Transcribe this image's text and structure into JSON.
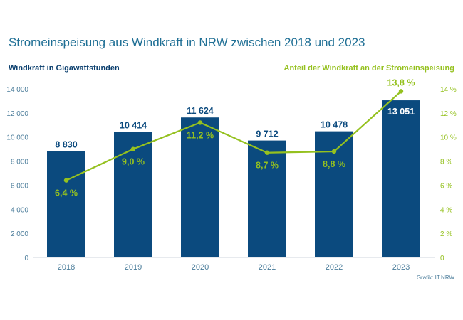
{
  "colors": {
    "bar": "#0b4a7e",
    "line": "#95c11f",
    "axis_text": "#4a7c9a",
    "title": "#1f6f95",
    "grid": "#cfd6dc"
  },
  "chart_data": {
    "type": "bar",
    "title": "Stromeinspeisung aus Windkraft in NRW zwischen 2018 und 2023",
    "ylabel": "Windkraft in Gigawattstunden",
    "y2label": "Anteil der Windkraft an der Stromeinspeisung",
    "source": "Grafik: IT.NRW",
    "categories": [
      "2018",
      "2019",
      "2020",
      "2021",
      "2022",
      "2023"
    ],
    "ylim": [
      0,
      14000
    ],
    "y_ticks": [
      "0",
      "2 000",
      "4 000",
      "6 000",
      "8 000",
      "10 000",
      "12 000",
      "14 000"
    ],
    "y2lim": [
      0,
      14
    ],
    "y2_ticks": [
      "0",
      "2 %",
      "4 %",
      "6 %",
      "8 %",
      "10 %",
      "12 %",
      "14 %"
    ],
    "series": [
      {
        "name": "Windkraft in Gigawattstunden",
        "type": "bar",
        "values": [
          8830,
          10414,
          11624,
          9712,
          10478,
          13051
        ],
        "labels": [
          "8 830",
          "10 414",
          "11 624",
          "9 712",
          "10 478",
          "13 051"
        ]
      },
      {
        "name": "Anteil der Windkraft an der Stromeinspeisung",
        "type": "line",
        "axis": "right",
        "values": [
          6.4,
          9.0,
          11.2,
          8.7,
          8.8,
          13.8
        ],
        "labels": [
          "6,4 %",
          "9,0 %",
          "11,2 %",
          "8,7 %",
          "8,8 %",
          "13,8 %"
        ]
      }
    ]
  }
}
